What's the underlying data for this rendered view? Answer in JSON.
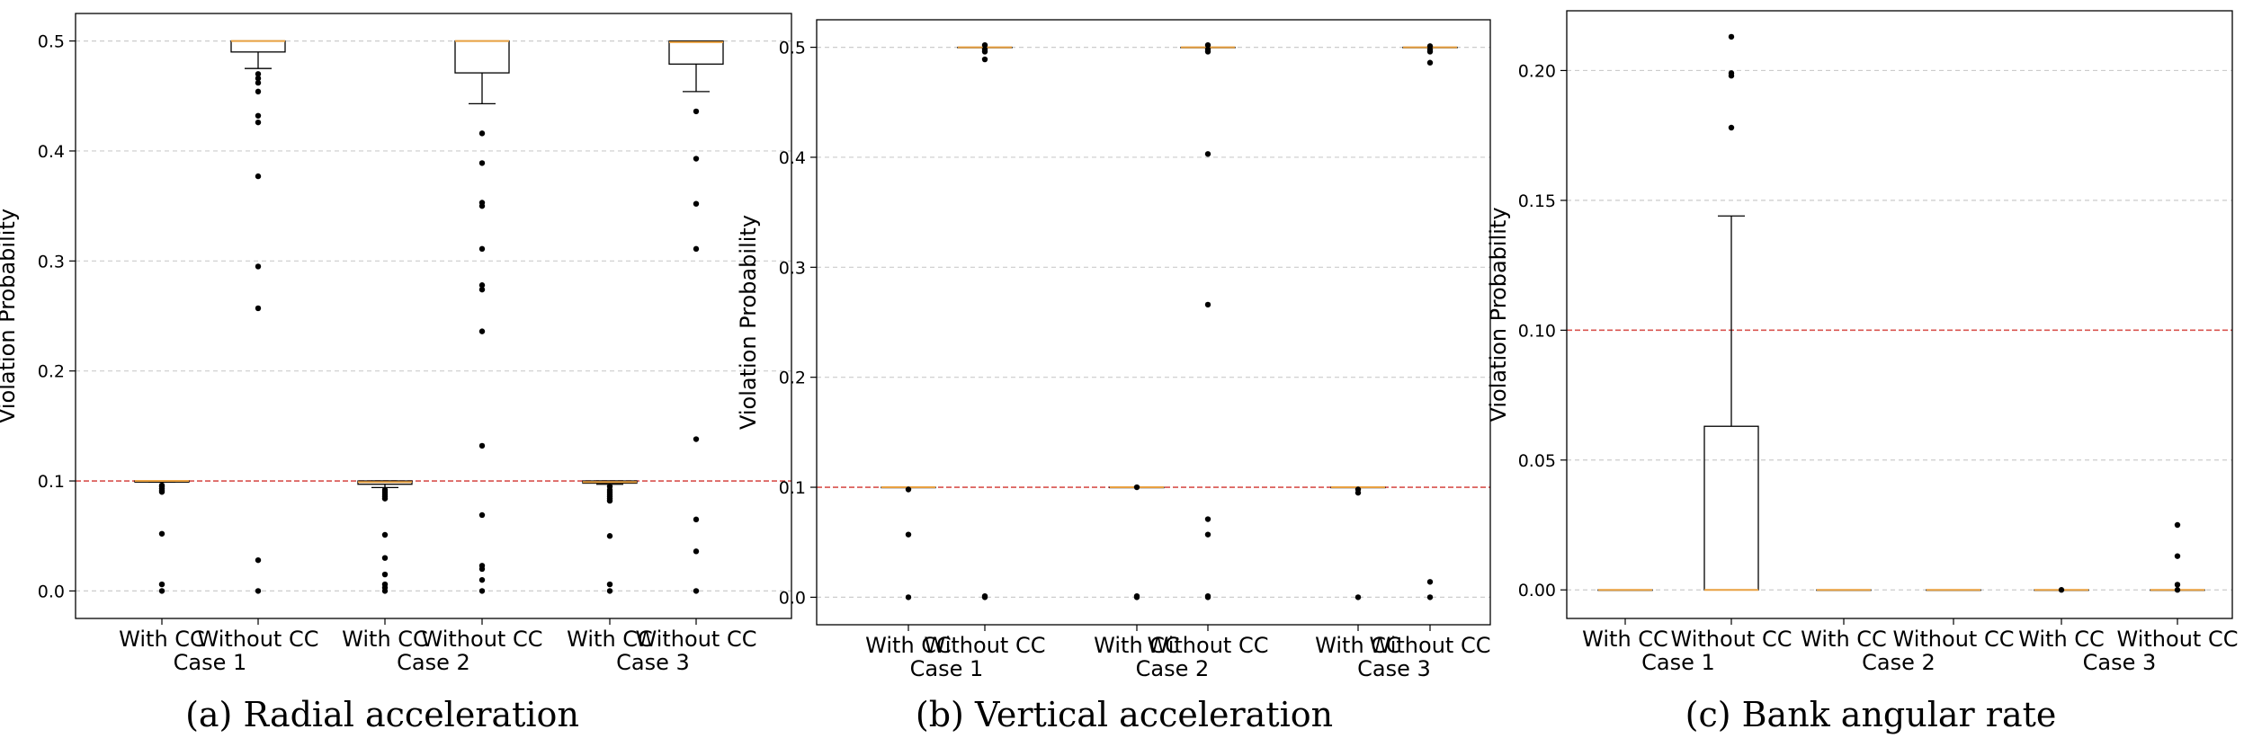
{
  "chart_data": [
    {
      "type": "box",
      "caption": "(a) Radial acceleration",
      "ylabel": "Violation Probability",
      "ylim": [
        -0.025,
        0.525
      ],
      "yticks": [
        "0.0",
        "0.1",
        "0.2",
        "0.3",
        "0.4",
        "0.5"
      ],
      "threshold": 0.1,
      "grid": "y",
      "categories": [
        "With CC",
        "Without CC",
        "With CC",
        "Without CC",
        "With CC",
        "Without CC"
      ],
      "groups": [
        "Case 1",
        "Case 2",
        "Case 3"
      ],
      "boxes": [
        {
          "q1": 0.099,
          "median": 0.1,
          "q3": 0.1,
          "whisker_low": 0.099,
          "whisker_high": 0.1,
          "outliers": [
            0.096,
            0.095,
            0.093,
            0.091,
            0.09,
            0.052,
            0.006,
            0.0
          ]
        },
        {
          "q1": 0.49,
          "median": 0.5,
          "q3": 0.5,
          "whisker_low": 0.475,
          "whisker_high": 0.5,
          "outliers": [
            0.47,
            0.466,
            0.462,
            0.454,
            0.432,
            0.426,
            0.377,
            0.295,
            0.257,
            0.028,
            0.0
          ]
        },
        {
          "q1": 0.097,
          "median": 0.099,
          "q3": 0.1,
          "whisker_low": 0.094,
          "whisker_high": 0.1,
          "outliers": [
            0.092,
            0.09,
            0.088,
            0.086,
            0.084,
            0.051,
            0.03,
            0.015,
            0.006,
            0.003,
            0.0
          ]
        },
        {
          "q1": 0.471,
          "median": 0.5,
          "q3": 0.5,
          "whisker_low": 0.443,
          "whisker_high": 0.5,
          "outliers": [
            0.416,
            0.389,
            0.353,
            0.35,
            0.311,
            0.278,
            0.274,
            0.236,
            0.132,
            0.069,
            0.023,
            0.02,
            0.01,
            0.0
          ]
        },
        {
          "q1": 0.098,
          "median": 0.099,
          "q3": 0.1,
          "whisker_low": 0.097,
          "whisker_high": 0.1,
          "outliers": [
            0.095,
            0.092,
            0.09,
            0.088,
            0.086,
            0.084,
            0.082,
            0.05,
            0.006,
            0.0
          ]
        },
        {
          "q1": 0.479,
          "median": 0.499,
          "q3": 0.5,
          "whisker_low": 0.454,
          "whisker_high": 0.5,
          "outliers": [
            0.436,
            0.393,
            0.352,
            0.311,
            0.138,
            0.065,
            0.036,
            0.0
          ]
        }
      ]
    },
    {
      "type": "box",
      "caption": "(b) Vertical acceleration",
      "ylabel": "Violation Probability",
      "ylim": [
        -0.025,
        0.525
      ],
      "yticks": [
        "0.0",
        "0.1",
        "0.2",
        "0.3",
        "0.4",
        "0.5"
      ],
      "threshold": 0.1,
      "grid": "y",
      "categories": [
        "With CC",
        "Without CC",
        "With CC",
        "Without CC",
        "With CC",
        "Without CC"
      ],
      "groups": [
        "Case 1",
        "Case 2",
        "Case 3"
      ],
      "boxes": [
        {
          "q1": 0.1,
          "median": 0.1,
          "q3": 0.1,
          "whisker_low": 0.1,
          "whisker_high": 0.1,
          "outliers": [
            0.098,
            0.057,
            0.0
          ]
        },
        {
          "q1": 0.5,
          "median": 0.5,
          "q3": 0.5,
          "whisker_low": 0.5,
          "whisker_high": 0.5,
          "outliers": [
            0.502,
            0.498,
            0.496,
            0.489,
            0.001,
            0.0
          ]
        },
        {
          "q1": 0.1,
          "median": 0.1,
          "q3": 0.1,
          "whisker_low": 0.1,
          "whisker_high": 0.1,
          "outliers": [
            0.1,
            0.001,
            0.0
          ]
        },
        {
          "q1": 0.5,
          "median": 0.5,
          "q3": 0.5,
          "whisker_low": 0.5,
          "whisker_high": 0.5,
          "outliers": [
            0.502,
            0.498,
            0.496,
            0.403,
            0.266,
            0.071,
            0.057,
            0.001,
            0.0
          ]
        },
        {
          "q1": 0.1,
          "median": 0.1,
          "q3": 0.1,
          "whisker_low": 0.1,
          "whisker_high": 0.1,
          "outliers": [
            0.098,
            0.095,
            0.0
          ]
        },
        {
          "q1": 0.5,
          "median": 0.5,
          "q3": 0.5,
          "whisker_low": 0.5,
          "whisker_high": 0.5,
          "outliers": [
            0.501,
            0.498,
            0.496,
            0.486,
            0.014,
            0.0
          ]
        }
      ]
    },
    {
      "type": "box",
      "caption": "(c) Bank angular rate",
      "ylabel": "Violation Probability",
      "ylim": [
        -0.011,
        0.223
      ],
      "yticks": [
        "0.00",
        "0.05",
        "0.10",
        "0.15",
        "0.20"
      ],
      "threshold": 0.1,
      "grid": "y",
      "categories": [
        "With CC",
        "Without CC",
        "With CC",
        "Without CC",
        "With CC",
        "Without CC"
      ],
      "groups": [
        "Case 1",
        "Case 2",
        "Case 3"
      ],
      "boxes": [
        {
          "q1": 0.0,
          "median": 0.0,
          "q3": 0.0,
          "whisker_low": 0.0,
          "whisker_high": 0.0,
          "outliers": []
        },
        {
          "q1": 0.0,
          "median": 0.0,
          "q3": 0.063,
          "whisker_low": 0.0,
          "whisker_high": 0.144,
          "outliers": [
            0.213,
            0.199,
            0.198,
            0.178
          ]
        },
        {
          "q1": 0.0,
          "median": 0.0,
          "q3": 0.0,
          "whisker_low": 0.0,
          "whisker_high": 0.0,
          "outliers": []
        },
        {
          "q1": 0.0,
          "median": 0.0,
          "q3": 0.0,
          "whisker_low": 0.0,
          "whisker_high": 0.0,
          "outliers": []
        },
        {
          "q1": 0.0,
          "median": 0.0,
          "q3": 0.0,
          "whisker_low": 0.0,
          "whisker_high": 0.0,
          "outliers": [
            0.0
          ]
        },
        {
          "q1": 0.0,
          "median": 0.0,
          "q3": 0.0,
          "whisker_low": 0.0,
          "whisker_high": 0.0,
          "outliers": [
            0.025,
            0.013,
            0.002,
            0.0
          ]
        }
      ]
    }
  ],
  "colors": {
    "median": "#e8a040",
    "threshold": "#d9534f",
    "grid": "#cccccc",
    "box": "#000000"
  }
}
